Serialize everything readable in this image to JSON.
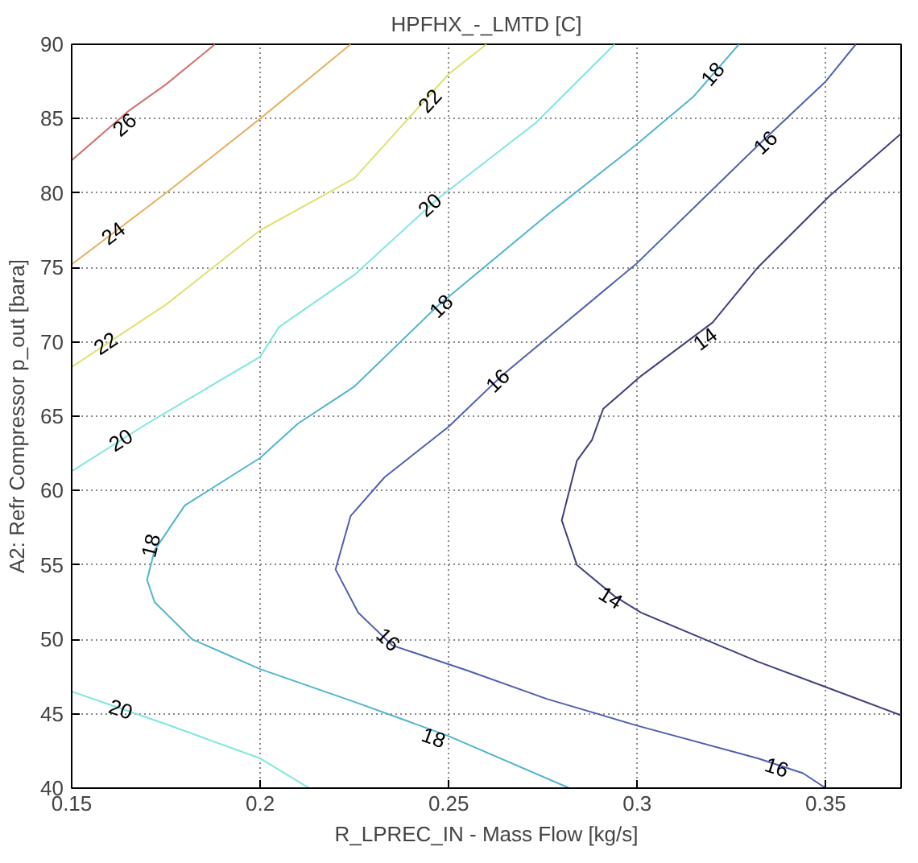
{
  "chart_data": {
    "type": "line",
    "title": "HPFHX_-_LMTD [C]",
    "xlabel": "R_LPREC_IN - Mass Flow [kg/s]",
    "ylabel": "A2: Refr Compressor p_out [bara]",
    "xlim": [
      0.15,
      0.37
    ],
    "ylim": [
      40,
      90
    ],
    "xticks": [
      0.15,
      0.2,
      0.25,
      0.3,
      0.35
    ],
    "yticks": [
      40,
      45,
      50,
      55,
      60,
      65,
      70,
      75,
      80,
      85,
      90
    ],
    "grid": true,
    "line_style": "solid",
    "marker": "none",
    "series": [
      {
        "color": "#d4706c",
        "x": [
          0.15,
          0.165,
          0.175,
          0.188
        ],
        "values": [
          82.2,
          85.5,
          87.3,
          90
        ]
      },
      {
        "color": "#e8b060",
        "x": [
          0.15,
          0.175,
          0.2,
          0.224
        ],
        "values": [
          75.2,
          80,
          85,
          90
        ]
      },
      {
        "color": "#e0e070",
        "x": [
          0.15,
          0.175,
          0.2,
          0.225,
          0.25,
          0.26
        ],
        "values": [
          68.3,
          72.5,
          77.5,
          81,
          88,
          90
        ]
      },
      {
        "color": "#80e6e0",
        "x": [
          0.15,
          0.17,
          0.2,
          0.205,
          0.225,
          0.247,
          0.273,
          0.294
        ],
        "values": [
          61.3,
          64.5,
          69,
          71,
          74.5,
          79.6,
          84.7,
          90
        ]
      },
      {
        "color": "#80e6e0",
        "x": [
          0.15,
          0.175,
          0.2,
          0.213
        ],
        "values": [
          46.5,
          44.3,
          42,
          40
        ]
      },
      {
        "color": "#50b4d0",
        "x": [
          0.282,
          0.25,
          0.225,
          0.2,
          0.182,
          0.172,
          0.17,
          0.172,
          0.18,
          0.2,
          0.21,
          0.225,
          0.247,
          0.276,
          0.3,
          0.315,
          0.327
        ],
        "values": [
          40,
          43.5,
          45.8,
          48,
          50,
          52.5,
          54,
          56,
          59,
          62.2,
          64.5,
          67,
          72.4,
          78.5,
          83.3,
          86.5,
          90
        ]
      },
      {
        "color": "#5060b0",
        "x": [
          0.35,
          0.344,
          0.332,
          0.3,
          0.276,
          0.255,
          0.235,
          0.226,
          0.22,
          0.224,
          0.233,
          0.25,
          0.264,
          0.3,
          0.332,
          0.35,
          0.358
        ],
        "values": [
          40,
          41,
          42,
          44.2,
          46,
          47.9,
          49.6,
          51.8,
          54.7,
          58.3,
          60.9,
          64.3,
          67.7,
          75.3,
          83.2,
          87.5,
          90
        ]
      },
      {
        "color": "#404080",
        "x": [
          0.37,
          0.332,
          0.301,
          0.294,
          0.284,
          0.28,
          0.284,
          0.288,
          0.291,
          0.301,
          0.32,
          0.332,
          0.351,
          0.37
        ],
        "values": [
          44.9,
          48.5,
          51.8,
          52.9,
          55,
          58,
          62,
          63.4,
          65.5,
          67.7,
          71.3,
          75,
          79.8,
          84.0
        ]
      }
    ],
    "annotations": [
      {
        "text": "26",
        "x": 0.164,
        "y": 84.6
      },
      {
        "text": "24",
        "x": 0.161,
        "y": 77.3
      },
      {
        "text": "22",
        "x": 0.159,
        "y": 69.9
      },
      {
        "text": "22",
        "x": 0.245,
        "y": 86.2
      },
      {
        "text": "20",
        "x": 0.163,
        "y": 63.4
      },
      {
        "text": "20",
        "x": 0.245,
        "y": 79.2
      },
      {
        "text": "20",
        "x": 0.163,
        "y": 45.3
      },
      {
        "text": "18",
        "x": 0.171,
        "y": 56.3
      },
      {
        "text": "18",
        "x": 0.248,
        "y": 72.4
      },
      {
        "text": "18",
        "x": 0.32,
        "y": 88
      },
      {
        "text": "18",
        "x": 0.246,
        "y": 43.4
      },
      {
        "text": "16",
        "x": 0.234,
        "y": 50
      },
      {
        "text": "16",
        "x": 0.263,
        "y": 67.4
      },
      {
        "text": "16",
        "x": 0.334,
        "y": 83.4
      },
      {
        "text": "16",
        "x": 0.337,
        "y": 41.4
      },
      {
        "text": "14",
        "x": 0.318,
        "y": 70.2
      },
      {
        "text": "14",
        "x": 0.293,
        "y": 52.8
      }
    ]
  }
}
